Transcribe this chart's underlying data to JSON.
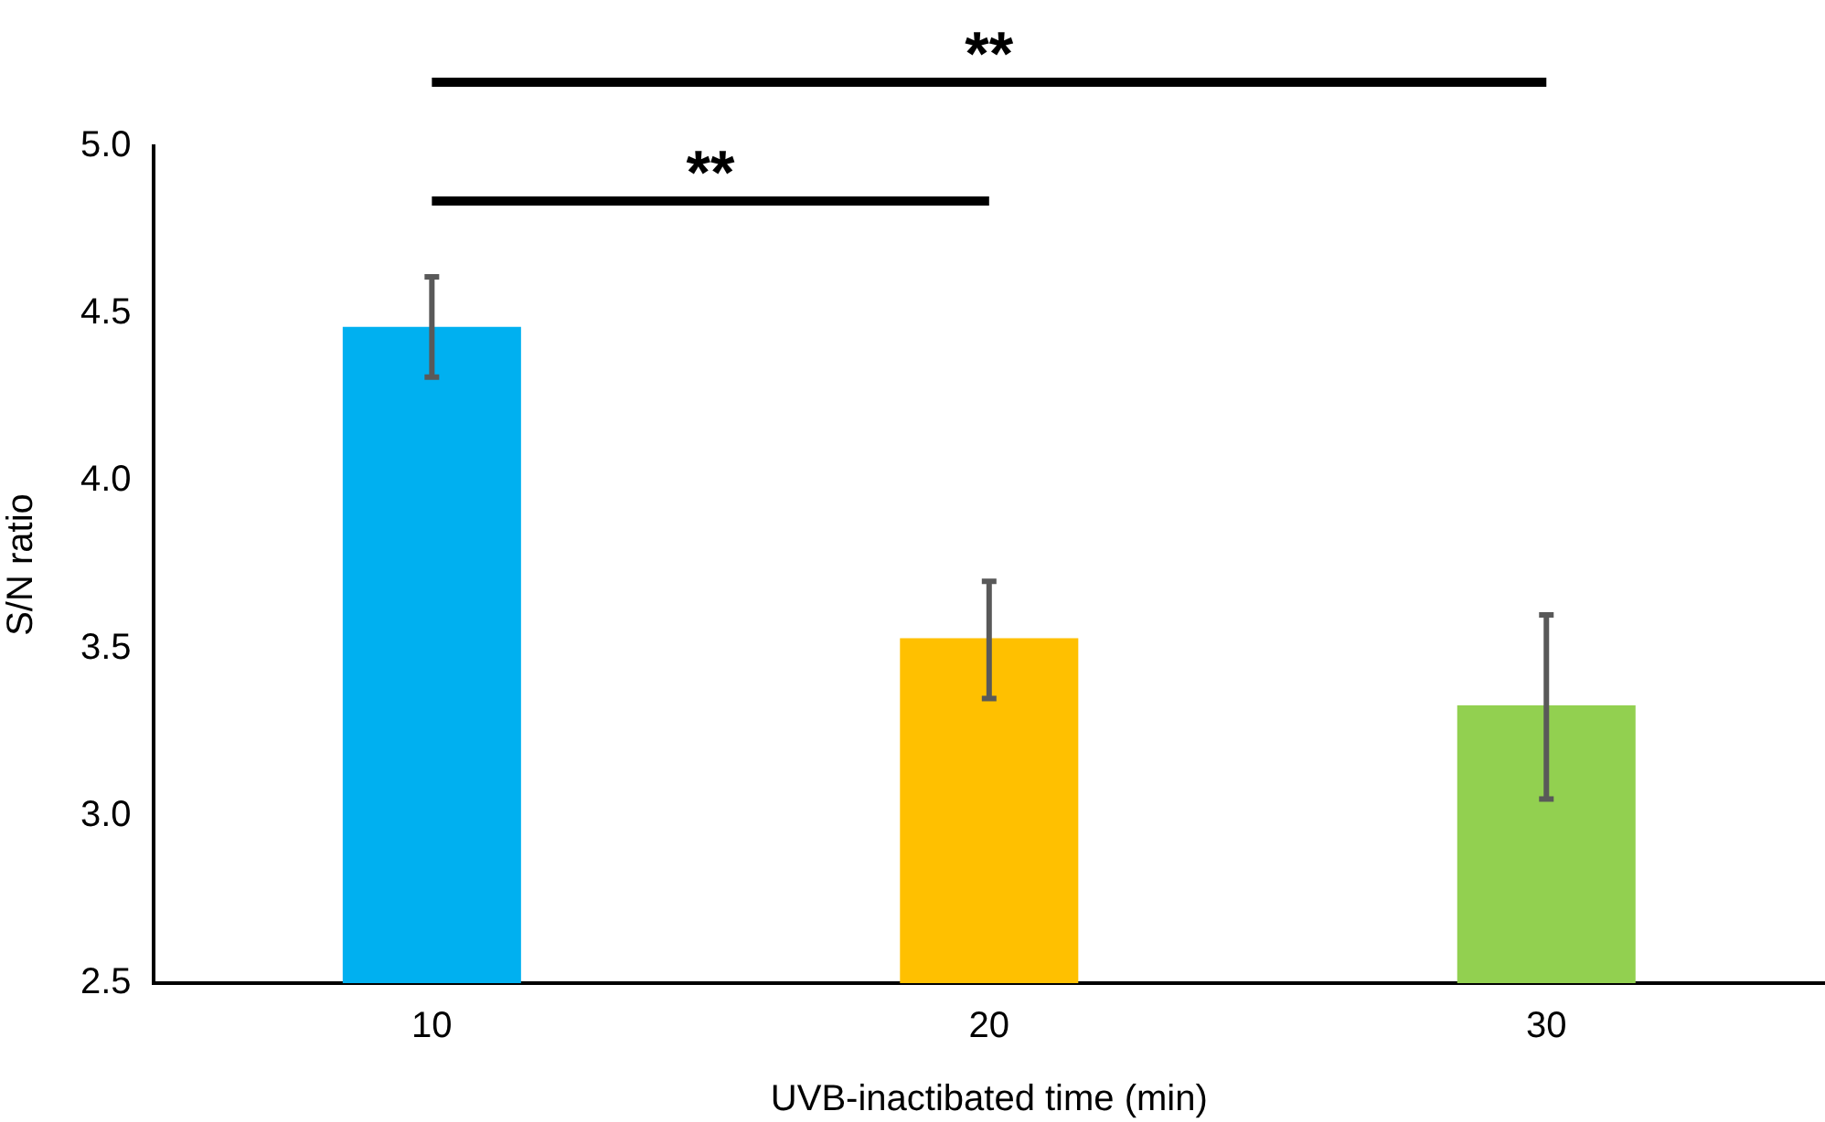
{
  "chart_data": {
    "type": "bar",
    "xlabel": "UVB-inactibated time (min)",
    "ylabel": "S/N ratio",
    "categories": [
      "10",
      "20",
      "30"
    ],
    "values": [
      4.46,
      3.53,
      3.33
    ],
    "colors": [
      "#00b0f0",
      "#ffc000",
      "#92d050"
    ],
    "errors": [
      [
        4.31,
        4.61
      ],
      [
        3.35,
        3.7
      ],
      [
        3.05,
        3.6
      ]
    ],
    "ylim": [
      2.5,
      5.0
    ],
    "yticks": [
      {
        "value": 2.5,
        "label": "2.5"
      },
      {
        "value": 3,
        "label": "3.0"
      },
      {
        "value": 3.5,
        "label": "3.5"
      },
      {
        "value": 4,
        "label": "4.0"
      },
      {
        "value": 4.5,
        "label": "4.5"
      },
      {
        "value": 5,
        "label": "5.0"
      }
    ],
    "grid": false,
    "legend": false,
    "annotations": [
      "**",
      "**"
    ]
  }
}
